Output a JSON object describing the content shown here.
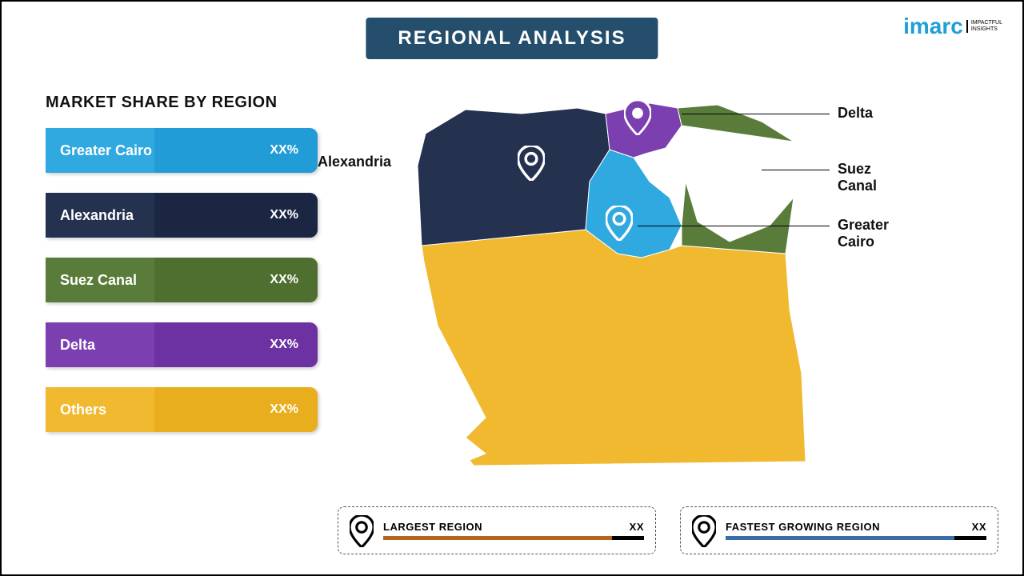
{
  "title": "REGIONAL ANALYSIS",
  "logo": {
    "main": "imarc",
    "sub1": "IMPACTFUL",
    "sub2": "INSIGHTS",
    "color": "#1e9fd6"
  },
  "legend": {
    "title": "MARKET SHARE BY REGION",
    "items": [
      {
        "label": "Greater Cairo",
        "value": "XX%",
        "color": "#30a8e0",
        "accent": "#1f9ad4"
      },
      {
        "label": "Alexandria",
        "value": "XX%",
        "color": "#24314f",
        "accent": "#1a2540"
      },
      {
        "label": "Suez Canal",
        "value": "XX%",
        "color": "#5a7c3a",
        "accent": "#4d6d30"
      },
      {
        "label": "Delta",
        "value": "XX%",
        "color": "#7b3fb0",
        "accent": "#6b309f"
      },
      {
        "label": "Others",
        "value": "XX%",
        "color": "#f1b930",
        "accent": "#e8ac1a"
      }
    ]
  },
  "map": {
    "regions": {
      "alexandria": {
        "color": "#24314f"
      },
      "delta": {
        "color": "#7b3fb0"
      },
      "suez": {
        "color": "#5a7c3a"
      },
      "cairo": {
        "color": "#30a8e0"
      },
      "others": {
        "color": "#f1b930"
      }
    },
    "labels": {
      "delta": "Delta",
      "alexandria": "Alexandria",
      "suez": "Suez Canal",
      "cairo": "Greater Cairo"
    },
    "pin_stroke": "#ffffff",
    "delta_pin_fill": "#7b3fb0"
  },
  "metrics": {
    "largest": {
      "title": "LARGEST REGION",
      "value": "XX",
      "bar_color": "#b5651d"
    },
    "fastest": {
      "title": "FASTEST GROWING REGION",
      "value": "XX",
      "bar_color": "#3a6ea5"
    }
  }
}
